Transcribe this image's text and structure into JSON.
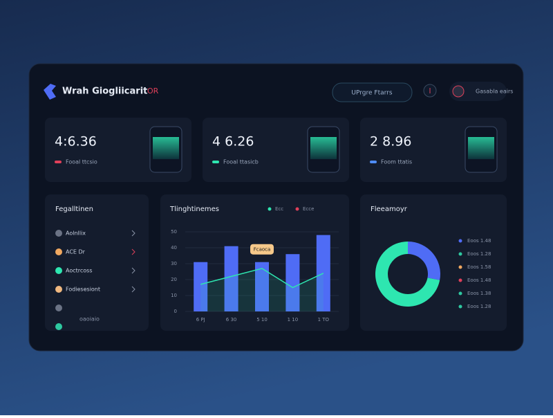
{
  "header": {
    "title": "Wrah Giogliicarit",
    "badge": "OR",
    "search": "UPrgre Ftarrs",
    "user": "Gasabla eairs"
  },
  "stats": [
    {
      "value": "4:6.36",
      "label": "Fooal ttcsio",
      "color": "#e0405a"
    },
    {
      "value": "4 6.26",
      "label": "Fooal ttasicb",
      "color": "#2ee6b0"
    },
    {
      "value": "2 8.96",
      "label": "Foom ttatis",
      "color": "#4f8cf5"
    }
  ],
  "list": {
    "title": "Fegalltinen",
    "items": [
      {
        "label": "Aolnllix",
        "color": "#6b7385"
      },
      {
        "label": "ACE Dr",
        "color": "#f0a860"
      },
      {
        "label": "Aoctrcoss",
        "color": "#2ee6b0"
      },
      {
        "label": "Fodiesesiont",
        "color": "#f0b880"
      },
      {
        "color": "#6b7385"
      },
      {
        "label": "oaoiaio",
        "color": "#2ec8a0"
      }
    ]
  },
  "trend": {
    "title": "Tlinghtinemes",
    "type": "bar",
    "legend": [
      {
        "name": "Ecc",
        "color": "#2ee6b0"
      },
      {
        "name": "Ecce",
        "color": "#e0405a"
      }
    ],
    "categories": [
      "6 PJ",
      "6 30",
      "5 10",
      "1 10",
      "1 TO"
    ],
    "series": [
      {
        "type": "line",
        "color": "#2ee6b0",
        "values": [
          17,
          22,
          27,
          15,
          24
        ]
      },
      {
        "type": "bar",
        "color": "#4f6cf5",
        "values": [
          31,
          41,
          31,
          36,
          48
        ]
      }
    ],
    "ylim": [
      0,
      50
    ],
    "yticks": [
      0,
      10,
      20,
      30,
      40,
      50
    ],
    "annotation": "Fcaoca"
  },
  "breakdown": {
    "title": "Fleeamoyr",
    "type": "pie",
    "values": [
      28,
      72
    ],
    "colors": [
      "#4f6cf5",
      "#2ee6b0"
    ],
    "legend": [
      {
        "label": "Eoos 1.48",
        "color": "#4f6cf5"
      },
      {
        "label": "Eoos 1.28",
        "color": "#2ec8a0"
      },
      {
        "label": "Eoos 1.58",
        "color": "#f0a860"
      },
      {
        "label": "Eoos 1.48",
        "color": "#e0405a"
      },
      {
        "label": "Eoos 1.38",
        "color": "#2ec8a0"
      },
      {
        "label": "Eoos 1.28",
        "color": "#2ec8a0"
      }
    ]
  }
}
